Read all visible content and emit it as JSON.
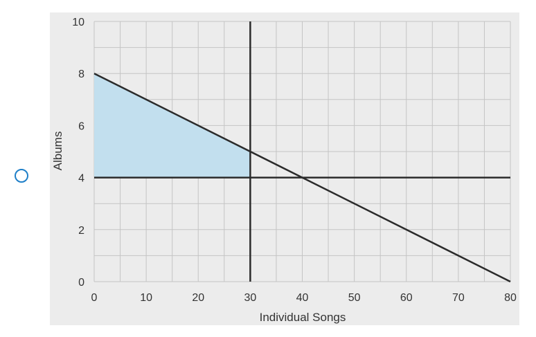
{
  "question": {
    "option_state": "unselected"
  },
  "chart_data": {
    "type": "line",
    "xlabel": "Individual Songs",
    "ylabel": "Albums",
    "xlim": [
      0,
      80
    ],
    "ylim": [
      0,
      10
    ],
    "x_ticks": [
      "0",
      "10",
      "20",
      "30",
      "40",
      "50",
      "60",
      "70",
      "80"
    ],
    "y_ticks": [
      "0",
      "2",
      "4",
      "6",
      "8",
      "10"
    ],
    "minor_grid": {
      "x_step": 5,
      "y_step": 1
    },
    "grid": true,
    "series": [
      {
        "points": [
          [
            0,
            8
          ],
          [
            80,
            0
          ]
        ]
      },
      {
        "points": [
          [
            30,
            0
          ],
          [
            30,
            10
          ]
        ]
      },
      {
        "points": [
          [
            0,
            4
          ],
          [
            80,
            4
          ]
        ]
      }
    ],
    "shaded_region": {
      "polygon": [
        [
          0,
          4
        ],
        [
          0,
          8
        ],
        [
          30,
          5
        ],
        [
          30,
          4
        ]
      ],
      "color": "#c2dfee"
    },
    "colors": {
      "background": "#ececec",
      "grid": "#c4c4c4",
      "lines": "#2b2b2b",
      "radio": "#1e7fc8"
    }
  }
}
